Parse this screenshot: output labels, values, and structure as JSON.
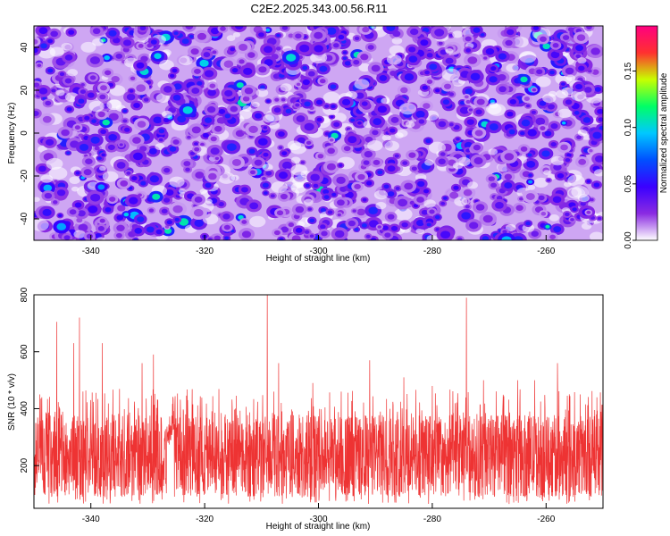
{
  "figure_title": "C2E2.2025.343.00.56.R11",
  "chart_data": [
    {
      "type": "heatmap",
      "title": "C2E2.2025.343.00.56.R11",
      "xlabel": "Height of straight line (km)",
      "ylabel": "Frequency (Hz)",
      "xlim": [
        -350,
        -250
      ],
      "ylim": [
        -50,
        50
      ],
      "x_ticks": [
        -340,
        -320,
        -300,
        -280,
        -260
      ],
      "y_ticks": [
        40,
        20,
        0,
        -20,
        -40
      ],
      "colorbar": {
        "label": "Normalized spectral amplitude",
        "range": [
          0,
          0.19
        ],
        "ticks": [
          "0.00",
          "0.05",
          "0.10",
          "0.15"
        ],
        "colormap": [
          "#ffffff",
          "#8a2be2",
          "#3a00ff",
          "#0050ff",
          "#00c8ff",
          "#00ff66",
          "#c8ff00",
          "#ff3030",
          "#ff0080"
        ]
      },
      "background_level": 0.01,
      "typical_blob_amplitude": 0.04,
      "max_amplitude": 0.11
    },
    {
      "type": "line",
      "xlabel": "Height of straight line (km)",
      "ylabel": "SNR (10 * v/v)",
      "xlim": [
        -350,
        -250
      ],
      "ylim": [
        50,
        800
      ],
      "x_ticks": [
        -340,
        -320,
        -300,
        -280,
        -260
      ],
      "y_ticks": [
        200,
        400,
        600,
        800
      ],
      "color": "#ee3333",
      "baseline_mean": 220,
      "noise_band": [
        90,
        380
      ],
      "local_bump": {
        "x": -326,
        "y": 330
      },
      "spikes": [
        {
          "x": -349,
          "y": 450
        },
        {
          "x": -346,
          "y": 705
        },
        {
          "x": -343,
          "y": 630
        },
        {
          "x": -342,
          "y": 720
        },
        {
          "x": -338,
          "y": 630
        },
        {
          "x": -331,
          "y": 560
        },
        {
          "x": -329,
          "y": 590
        },
        {
          "x": -323,
          "y": 430
        },
        {
          "x": -309,
          "y": 805
        },
        {
          "x": -307,
          "y": 560
        },
        {
          "x": -301,
          "y": 490
        },
        {
          "x": -296,
          "y": 460
        },
        {
          "x": -291,
          "y": 570
        },
        {
          "x": -285,
          "y": 510
        },
        {
          "x": -280,
          "y": 480
        },
        {
          "x": -274,
          "y": 790
        },
        {
          "x": -271,
          "y": 500
        },
        {
          "x": -265,
          "y": 500
        },
        {
          "x": -262,
          "y": 500
        },
        {
          "x": -258,
          "y": 560
        },
        {
          "x": -254,
          "y": 450
        }
      ]
    }
  ]
}
